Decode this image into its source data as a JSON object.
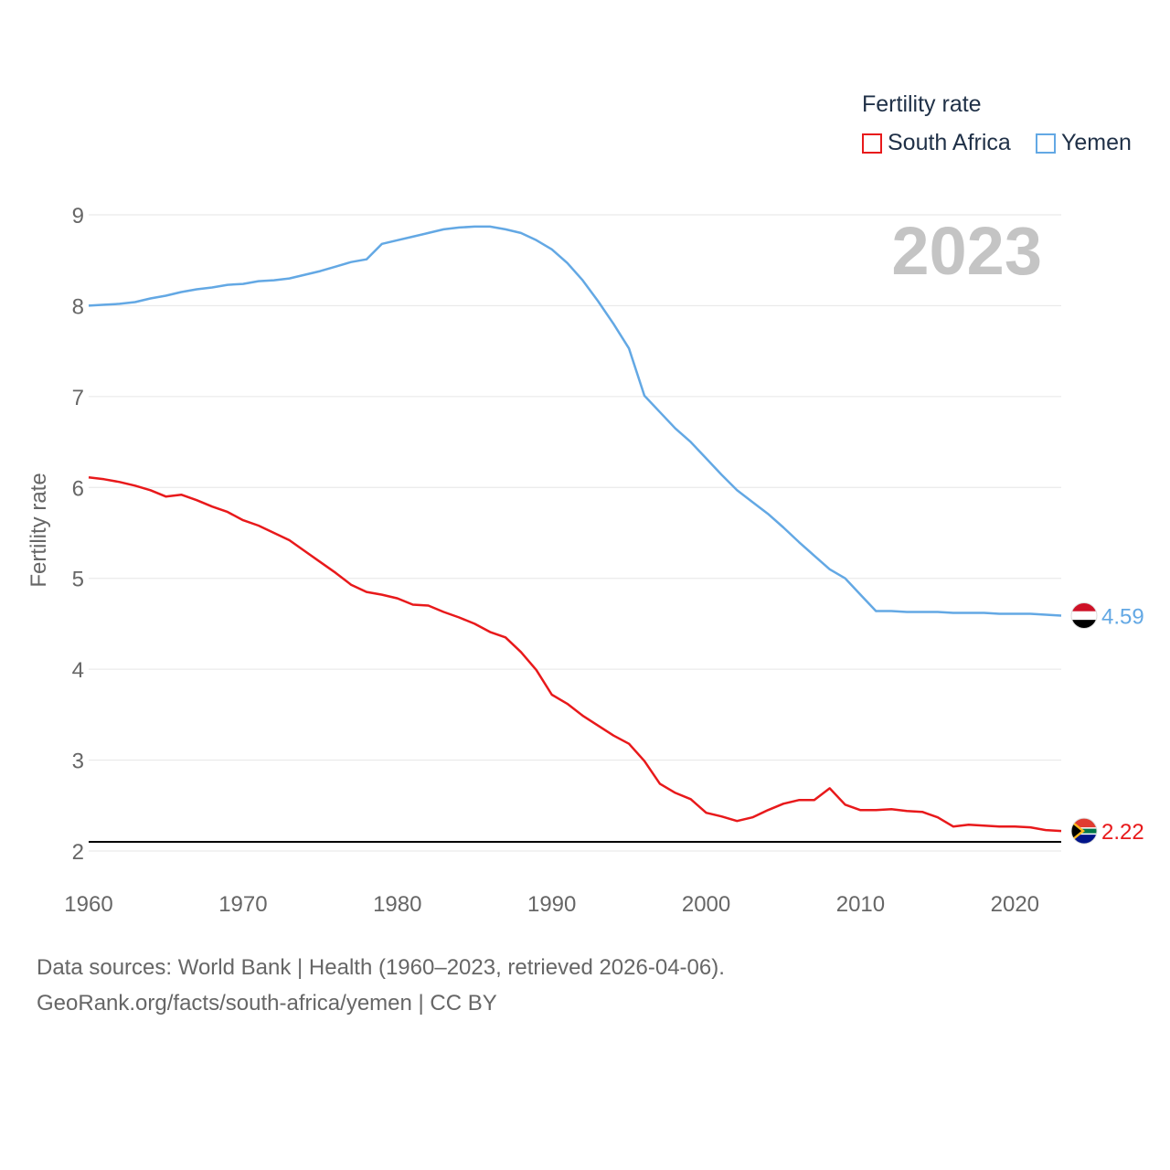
{
  "chart_data": {
    "type": "line",
    "title": "",
    "year_label": "2023",
    "ylabel": "Fertility rate",
    "xlabel": "",
    "xlim": [
      1960,
      2023
    ],
    "ylim": [
      2,
      9
    ],
    "x_ticks": [
      1960,
      1970,
      1980,
      1990,
      2000,
      2010,
      2020
    ],
    "y_ticks": [
      2,
      3,
      4,
      5,
      6,
      7,
      8,
      9
    ],
    "reference_line": 2.1,
    "legend_title": "Fertility rate",
    "x": [
      1960,
      1961,
      1962,
      1963,
      1964,
      1965,
      1966,
      1967,
      1968,
      1969,
      1970,
      1971,
      1972,
      1973,
      1974,
      1975,
      1976,
      1977,
      1978,
      1979,
      1980,
      1981,
      1982,
      1983,
      1984,
      1985,
      1986,
      1987,
      1988,
      1989,
      1990,
      1991,
      1992,
      1993,
      1994,
      1995,
      1996,
      1997,
      1998,
      1999,
      2000,
      2001,
      2002,
      2003,
      2004,
      2005,
      2006,
      2007,
      2008,
      2009,
      2010,
      2011,
      2012,
      2013,
      2014,
      2015,
      2016,
      2017,
      2018,
      2019,
      2020,
      2021,
      2022,
      2023
    ],
    "series": [
      {
        "name": "South Africa",
        "color": "#e8191b",
        "end_label": "2.22",
        "values": [
          6.11,
          6.09,
          6.06,
          6.02,
          5.97,
          5.9,
          5.92,
          5.86,
          5.79,
          5.73,
          5.64,
          5.58,
          5.5,
          5.42,
          5.3,
          5.18,
          5.06,
          4.93,
          4.85,
          4.82,
          4.78,
          4.71,
          4.7,
          4.63,
          4.57,
          4.5,
          4.41,
          4.35,
          4.19,
          3.99,
          3.72,
          3.62,
          3.49,
          3.38,
          3.27,
          3.18,
          2.99,
          2.74,
          2.64,
          2.57,
          2.42,
          2.38,
          2.33,
          2.37,
          2.45,
          2.52,
          2.56,
          2.56,
          2.69,
          2.51,
          2.45,
          2.45,
          2.46,
          2.44,
          2.43,
          2.37,
          2.27,
          2.29,
          2.28,
          2.27,
          2.27,
          2.26,
          2.23,
          2.22
        ]
      },
      {
        "name": "Yemen",
        "color": "#63a8e4",
        "end_label": "4.59",
        "values": [
          8.0,
          8.01,
          8.02,
          8.04,
          8.08,
          8.11,
          8.15,
          8.18,
          8.2,
          8.23,
          8.24,
          8.27,
          8.28,
          8.3,
          8.34,
          8.38,
          8.43,
          8.48,
          8.51,
          8.68,
          8.72,
          8.76,
          8.8,
          8.84,
          8.86,
          8.87,
          8.87,
          8.84,
          8.8,
          8.72,
          8.62,
          8.47,
          8.28,
          8.05,
          7.8,
          7.53,
          7.01,
          6.83,
          6.65,
          6.5,
          6.32,
          6.14,
          5.97,
          5.84,
          5.71,
          5.56,
          5.4,
          5.25,
          5.1,
          5.0,
          4.82,
          4.64,
          4.64,
          4.63,
          4.63,
          4.63,
          4.62,
          4.62,
          4.62,
          4.61,
          4.61,
          4.61,
          4.6,
          4.59
        ]
      }
    ]
  },
  "footer": {
    "source_line": "Data sources: World Bank | Health (1960–2023, retrieved 2026-04-06).",
    "url_line": "GeoRank.org/facts/south-africa/yemen | CC BY"
  }
}
